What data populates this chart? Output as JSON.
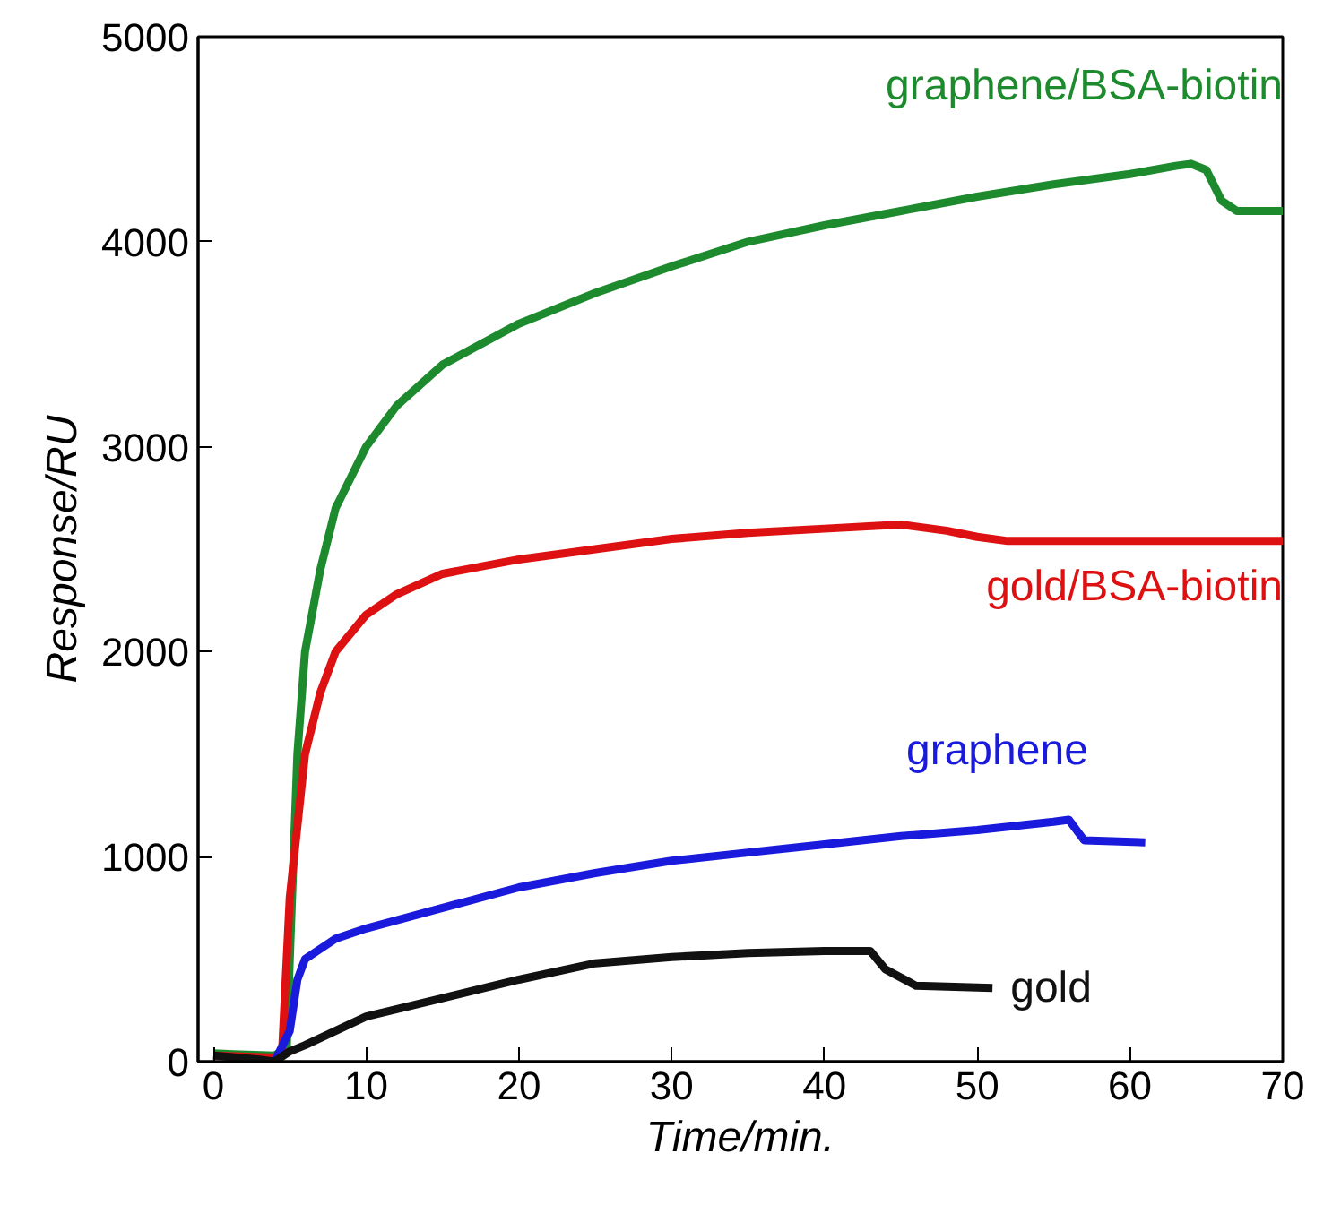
{
  "chart_data": {
    "type": "line",
    "xlabel": "Time/min.",
    "ylabel": "Response/RU",
    "xlim": [
      -1,
      70
    ],
    "ylim": [
      0,
      5000
    ],
    "xticks": [
      0,
      10,
      20,
      30,
      40,
      50,
      60,
      70
    ],
    "yticks": [
      0,
      1000,
      2000,
      3000,
      4000,
      5000
    ],
    "grid": false,
    "series": [
      {
        "name": "graphene/BSA-biotin",
        "color": "#1e8a2e",
        "x": [
          0,
          4,
          4.8,
          5,
          5.5,
          6,
          7,
          8,
          10,
          12,
          15,
          20,
          25,
          30,
          35,
          40,
          45,
          50,
          55,
          60,
          63,
          64,
          65,
          66,
          67,
          70
        ],
        "values": [
          40,
          30,
          60,
          500,
          1500,
          2000,
          2400,
          2700,
          3000,
          3200,
          3400,
          3600,
          3750,
          3880,
          4000,
          4080,
          4150,
          4220,
          4280,
          4330,
          4370,
          4380,
          4350,
          4200,
          4150,
          4150
        ]
      },
      {
        "name": "gold/BSA-biotin",
        "color": "#dd1111",
        "x": [
          0,
          4,
          4.5,
          5,
          6,
          7,
          8,
          10,
          12,
          15,
          20,
          25,
          30,
          35,
          40,
          45,
          48,
          50,
          52,
          55,
          70
        ],
        "values": [
          30,
          20,
          50,
          800,
          1500,
          1800,
          2000,
          2180,
          2280,
          2380,
          2450,
          2500,
          2550,
          2580,
          2600,
          2620,
          2590,
          2560,
          2540,
          2540,
          2540
        ]
      },
      {
        "name": "graphene",
        "color": "#1a1add",
        "x": [
          4,
          5,
          5.5,
          6,
          8,
          10,
          15,
          20,
          25,
          30,
          35,
          40,
          45,
          50,
          55,
          56,
          57,
          61
        ],
        "values": [
          0,
          150,
          400,
          500,
          600,
          650,
          750,
          850,
          920,
          980,
          1020,
          1060,
          1100,
          1130,
          1170,
          1180,
          1080,
          1070
        ]
      },
      {
        "name": "gold",
        "color": "#111111",
        "x": [
          0,
          3,
          4,
          5,
          6,
          8,
          10,
          15,
          20,
          25,
          30,
          35,
          40,
          43,
          44,
          46,
          51
        ],
        "values": [
          30,
          10,
          0,
          50,
          80,
          150,
          220,
          310,
          400,
          480,
          510,
          530,
          540,
          540,
          450,
          370,
          360
        ]
      }
    ]
  }
}
